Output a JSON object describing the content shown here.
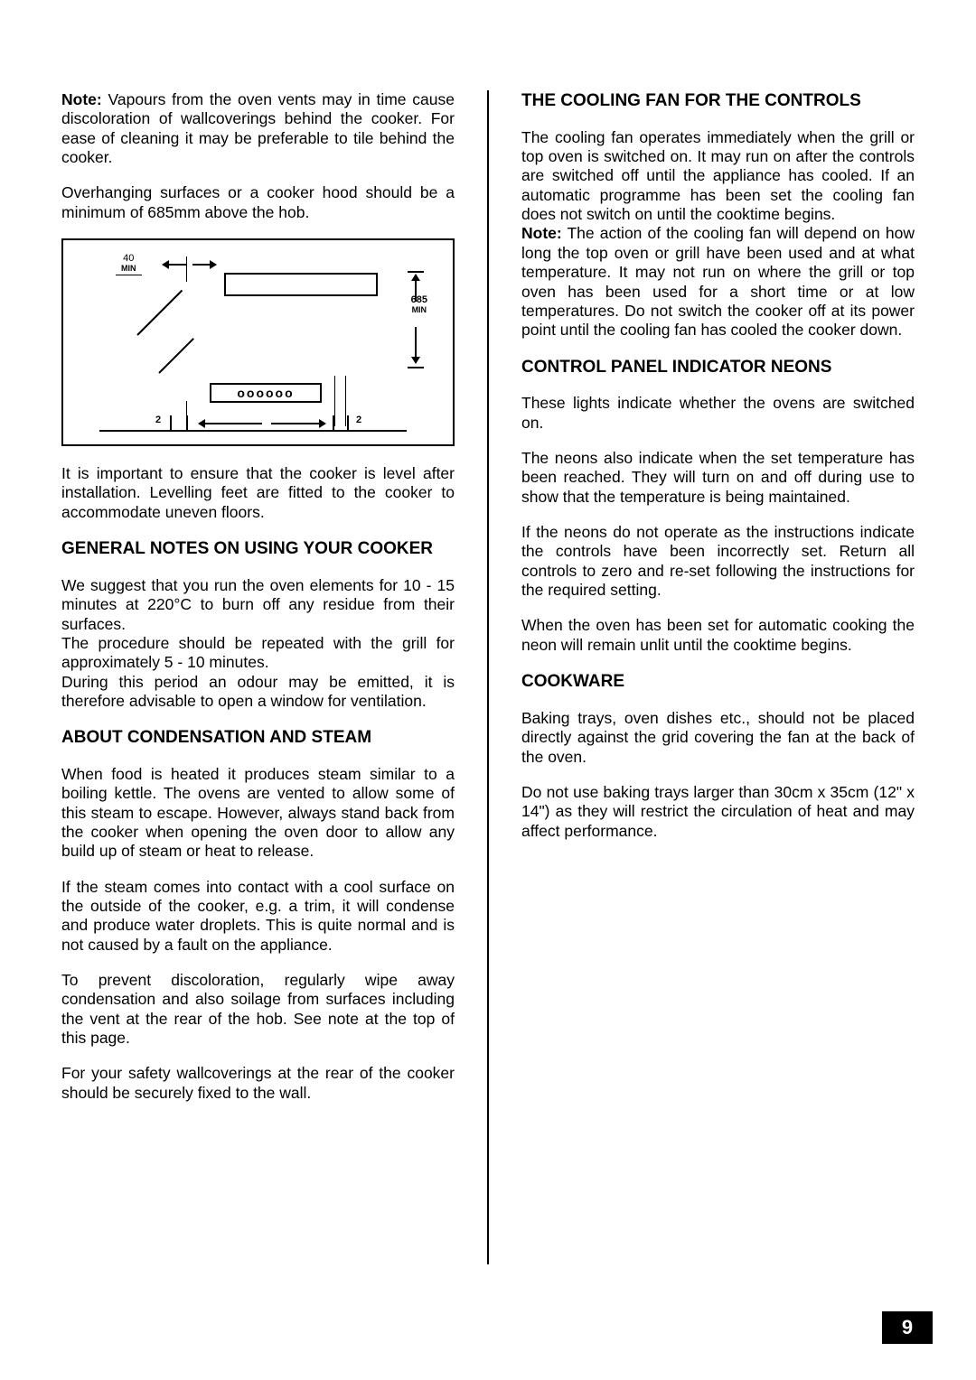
{
  "page_number": "9",
  "diagram": {
    "top_clearance_label": "40",
    "top_clearance_unit": "MIN",
    "vertical_clearance_label": "685",
    "vertical_clearance_unit": "MIN",
    "side_gap_left": "2",
    "side_gap_right": "2",
    "hob_rings": "oooooo",
    "border_color": "#000000",
    "background": "#ffffff",
    "label_fontsize_pt": 8
  },
  "left": {
    "note_label": "Note:",
    "note_text": "  Vapours from the oven vents may in time cause discoloration of wallcoverings behind the cooker. For ease of cleaning it may be preferable to tile behind the cooker.",
    "overhang": "Overhanging surfaces or a cooker hood should be  a minimum of 685mm above the hob.",
    "level": "It is important to ensure that the cooker is level after installation. Levelling feet are fitted to the cooker to accommodate uneven floors.",
    "h_general": "GENERAL NOTES ON USING YOUR COOKER",
    "general_p1": "We suggest that you run the oven elements for 10 - 15 minutes at 220°C to burn off any residue from their surfaces.",
    "general_p2": "The procedure should be repeated with the grill for approximately 5 - 10 minutes.",
    "general_p3": "During this period an odour may be emitted, it is therefore advisable to open a window for ventilation.",
    "h_condensation": "ABOUT CONDENSATION AND STEAM",
    "cond_p1": "When food is heated it produces steam similar to a boiling kettle. The ovens are vented to allow some of this steam to escape. However, always stand back from the cooker when opening the oven door to allow any build up of steam or heat to release.",
    "cond_p2": "If the steam comes into contact with a cool surface on the outside of the cooker, e.g. a trim, it will condense and produce water droplets. This is quite normal and is not caused by a fault on the appliance.",
    "cond_p3": "To prevent discoloration, regularly wipe away condensation and also soilage from surfaces including the vent at the rear of the hob. See note at the top of this page.",
    "cond_p4": "For your safety wallcoverings at the rear of the cooker should be securely fixed to the wall."
  },
  "right": {
    "h_cooling": "THE COOLING FAN FOR THE CONTROLS",
    "cooling_p1": "The cooling fan operates immediately when the grill or top oven is switched on. It may run on after the controls are switched off until the appliance has cooled.  If an automatic programme has been set the cooling fan does not switch on until the cooktime begins.",
    "cooling_note_label": "Note:",
    "cooling_note": " The action of the cooling fan will depend on how long the top oven or grill have been used and at what temperature. It may not run on where the grill or top oven has been used for a short time or at low temperatures. Do not switch the cooker off at its power point until the cooling fan has cooled the cooker down.",
    "h_neons": "CONTROL PANEL INDICATOR NEONS",
    "neons_p1": "These lights indicate whether the ovens are switched on.",
    "neons_p2": "The neons also indicate when the set temperature has been reached. They will turn on and off during use to show that the temperature is being maintained.",
    "neons_p3": "If the neons do not operate as the instructions indicate the controls have been incorrectly set. Return all controls to zero and re-set following the instructions for the required setting.",
    "neons_p4": "When the oven has been set for automatic cooking the neon will remain unlit until the cooktime begins.",
    "h_cookware": "COOKWARE",
    "cookware_p1": "Baking trays, oven dishes etc., should not be placed directly against the grid covering the fan at the back of the oven.",
    "cookware_p2": "Do not use baking trays larger than 30cm x 35cm (12\" x 14\") as they will restrict the circulation of heat and may affect performance."
  },
  "style": {
    "body_font": "Arial",
    "body_fontsize_pt": 13,
    "heading_fontsize_pt": 14,
    "text_color": "#000000",
    "background_color": "#ffffff",
    "page_number_bg": "#000000",
    "page_number_fg": "#ffffff"
  }
}
